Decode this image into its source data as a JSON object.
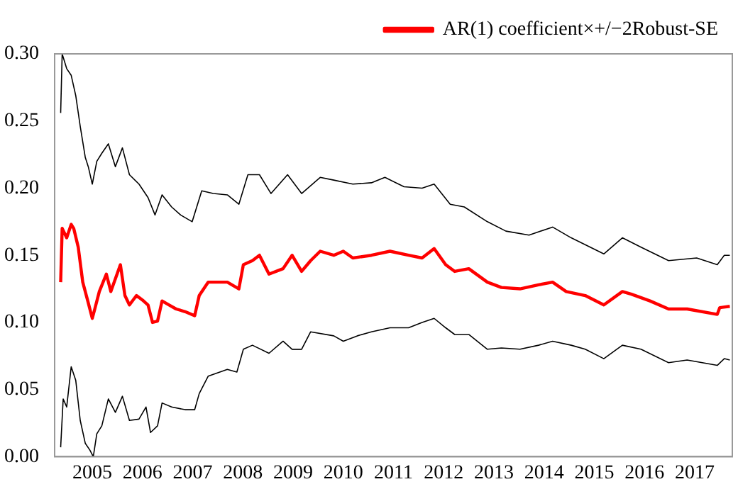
{
  "chart_data": {
    "type": "line",
    "xlim": [
      2004.75,
      2018.25
    ],
    "ylim": [
      0,
      0.3
    ],
    "xticks": [
      {
        "value": 2005.5,
        "label": "2005"
      },
      {
        "value": 2006.5,
        "label": "2006"
      },
      {
        "value": 2007.5,
        "label": "2007"
      },
      {
        "value": 2008.5,
        "label": "2008"
      },
      {
        "value": 2009.5,
        "label": "2009"
      },
      {
        "value": 2010.5,
        "label": "2010"
      },
      {
        "value": 2011.5,
        "label": "2011"
      },
      {
        "value": 2012.5,
        "label": "2012"
      },
      {
        "value": 2013.5,
        "label": "2013"
      },
      {
        "value": 2014.5,
        "label": "2014"
      },
      {
        "value": 2015.5,
        "label": "2015"
      },
      {
        "value": 2016.5,
        "label": "2016"
      },
      {
        "value": 2017.5,
        "label": "2017"
      }
    ],
    "yticks": [
      {
        "value": 0,
        "label": "0.00"
      },
      {
        "value": 0.05,
        "label": "0.05"
      },
      {
        "value": 0.1,
        "label": "0.10"
      },
      {
        "value": 0.15,
        "label": "0.15"
      },
      {
        "value": 0.2,
        "label": "0.20"
      },
      {
        "value": 0.25,
        "label": "0.25"
      },
      {
        "value": 0.3,
        "label": "0.30"
      }
    ],
    "legend": "top right",
    "grid": false,
    "marker": "none",
    "line_style": "solid",
    "series": [
      {
        "color": "#000000",
        "x": [
          2004.87,
          2004.9,
          2004.99,
          2005.08,
          2005.17,
          2005.26,
          2005.36,
          2005.42,
          2005.5,
          2005.59,
          2005.69,
          2005.82,
          2005.96,
          2006.1,
          2006.24,
          2006.43,
          2006.61,
          2006.75,
          2006.89,
          2007.08,
          2007.26,
          2007.49,
          2007.68,
          2007.91,
          2008.19,
          2008.42,
          2008.6,
          2008.83,
          2009.06,
          2009.39,
          2009.67,
          2010.04,
          2010.31,
          2010.69,
          2011.06,
          2011.33,
          2011.71,
          2012.07,
          2012.31,
          2012.63,
          2012.91,
          2013.37,
          2013.74,
          2014.2,
          2014.67,
          2015.04,
          2015.69,
          2016.06,
          2016.43,
          2016.98,
          2017.54,
          2017.95,
          2018.09,
          2018.2
        ],
        "values": [
          0.256,
          0.3,
          0.289,
          0.284,
          0.269,
          0.246,
          0.223,
          0.216,
          0.203,
          0.22,
          0.226,
          0.233,
          0.216,
          0.23,
          0.21,
          0.203,
          0.193,
          0.18,
          0.195,
          0.186,
          0.18,
          0.175,
          0.198,
          0.196,
          0.195,
          0.188,
          0.21,
          0.21,
          0.196,
          0.21,
          0.196,
          0.208,
          0.206,
          0.203,
          0.204,
          0.208,
          0.201,
          0.2,
          0.203,
          0.188,
          0.186,
          0.175,
          0.168,
          0.165,
          0.171,
          0.163,
          0.151,
          0.163,
          0.156,
          0.146,
          0.148,
          0.143,
          0.15,
          0.15
        ]
      },
      {
        "name": "AR(1) coefficient×+/−2Robust-SE",
        "color": "#ff0000",
        "x": [
          2004.87,
          2004.9,
          2004.99,
          2005.08,
          2005.13,
          2005.22,
          2005.31,
          2005.41,
          2005.5,
          2005.55,
          2005.64,
          2005.78,
          2005.87,
          2006.06,
          2006.15,
          2006.24,
          2006.38,
          2006.52,
          2006.61,
          2006.7,
          2006.8,
          2006.89,
          2007.03,
          2007.17,
          2007.35,
          2007.54,
          2007.63,
          2007.81,
          2008.19,
          2008.42,
          2008.51,
          2008.69,
          2008.83,
          2009.02,
          2009.3,
          2009.48,
          2009.67,
          2009.85,
          2010.04,
          2010.31,
          2010.5,
          2010.69,
          2011.06,
          2011.43,
          2011.8,
          2012.07,
          2012.31,
          2012.54,
          2012.72,
          2013.0,
          2013.37,
          2013.65,
          2014.02,
          2014.39,
          2014.67,
          2014.94,
          2015.32,
          2015.69,
          2016.06,
          2016.24,
          2016.61,
          2016.98,
          2017.35,
          2017.95,
          2018.0,
          2018.2
        ],
        "values": [
          0.13,
          0.17,
          0.163,
          0.173,
          0.17,
          0.156,
          0.13,
          0.116,
          0.103,
          0.11,
          0.123,
          0.136,
          0.123,
          0.143,
          0.12,
          0.113,
          0.12,
          0.116,
          0.113,
          0.1,
          0.101,
          0.116,
          0.113,
          0.11,
          0.108,
          0.105,
          0.12,
          0.13,
          0.13,
          0.125,
          0.143,
          0.146,
          0.15,
          0.136,
          0.14,
          0.15,
          0.138,
          0.146,
          0.153,
          0.15,
          0.153,
          0.148,
          0.15,
          0.153,
          0.15,
          0.148,
          0.155,
          0.143,
          0.138,
          0.14,
          0.13,
          0.126,
          0.125,
          0.128,
          0.13,
          0.123,
          0.12,
          0.113,
          0.123,
          0.121,
          0.116,
          0.11,
          0.11,
          0.106,
          0.111,
          0.112
        ]
      },
      {
        "color": "#000000",
        "x": [
          2004.87,
          2004.92,
          2004.99,
          2005.08,
          2005.17,
          2005.26,
          2005.36,
          2005.45,
          2005.52,
          2005.59,
          2005.69,
          2005.82,
          2005.96,
          2006.1,
          2006.24,
          2006.43,
          2006.57,
          2006.66,
          2006.8,
          2006.89,
          2007.08,
          2007.35,
          2007.54,
          2007.63,
          2007.81,
          2008.19,
          2008.38,
          2008.51,
          2008.69,
          2009.02,
          2009.3,
          2009.48,
          2009.67,
          2009.85,
          2010.31,
          2010.5,
          2010.78,
          2011.06,
          2011.43,
          2011.8,
          2012.07,
          2012.31,
          2012.54,
          2012.72,
          2013.0,
          2013.37,
          2013.65,
          2014.02,
          2014.39,
          2014.67,
          2015.04,
          2015.32,
          2015.69,
          2016.06,
          2016.43,
          2016.98,
          2017.35,
          2017.95,
          2018.09,
          2018.2
        ],
        "values": [
          0.007,
          0.043,
          0.037,
          0.067,
          0.057,
          0.027,
          0.01,
          0.005,
          0,
          0.017,
          0.023,
          0.043,
          0.033,
          0.045,
          0.027,
          0.028,
          0.037,
          0.018,
          0.023,
          0.04,
          0.037,
          0.035,
          0.035,
          0.047,
          0.06,
          0.065,
          0.063,
          0.08,
          0.083,
          0.077,
          0.086,
          0.08,
          0.08,
          0.093,
          0.09,
          0.086,
          0.09,
          0.093,
          0.096,
          0.096,
          0.1,
          0.103,
          0.096,
          0.091,
          0.091,
          0.08,
          0.081,
          0.08,
          0.083,
          0.086,
          0.083,
          0.08,
          0.073,
          0.083,
          0.08,
          0.07,
          0.072,
          0.068,
          0.073,
          0.072
        ]
      }
    ]
  }
}
